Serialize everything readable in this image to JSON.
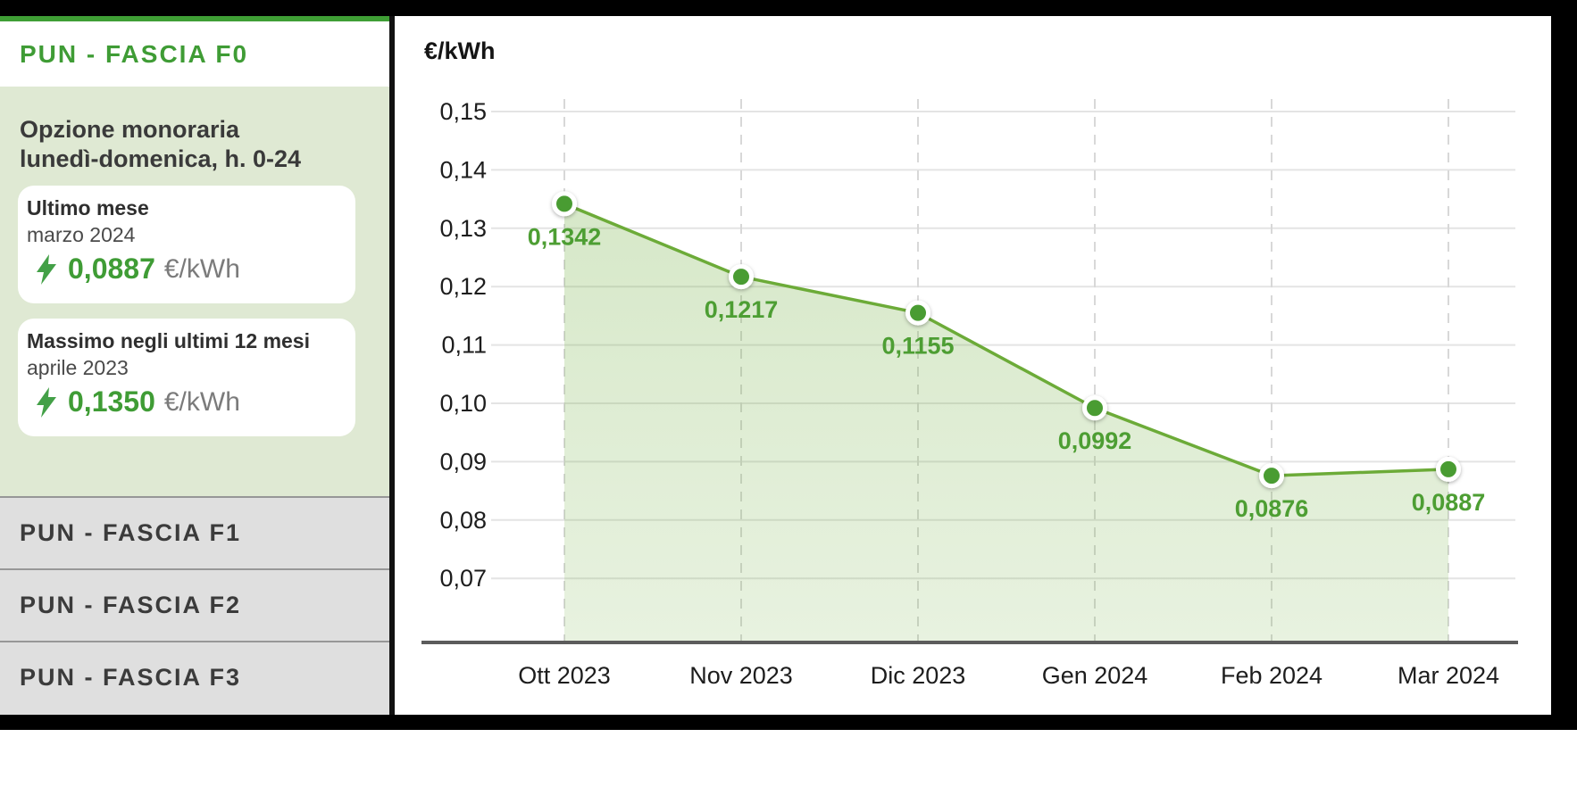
{
  "sidebar": {
    "active_tab": "PUN - FASCIA F0",
    "option_title_line1": "Opzione monoraria",
    "option_title_line2": "lunedì-domenica, h. 0-24",
    "stat_cards": [
      {
        "title": "Ultimo mese",
        "period": "marzo 2024",
        "value": "0,0887",
        "unit": "€/kWh"
      },
      {
        "title": "Massimo negli ultimi 12 mesi",
        "period": "aprile 2023",
        "value": "0,1350",
        "unit": "€/kWh"
      }
    ],
    "tabs": [
      {
        "label": "PUN - FASCIA F1"
      },
      {
        "label": "PUN - FASCIA F2"
      },
      {
        "label": "PUN - FASCIA F3"
      }
    ]
  },
  "chart": {
    "title": "€/kWh"
  },
  "chart_data": {
    "type": "area",
    "title": "€/kWh",
    "categories": [
      "Ott 2023",
      "Nov 2023",
      "Dic 2023",
      "Gen 2024",
      "Feb 2024",
      "Mar 2024"
    ],
    "values": [
      0.1342,
      0.1217,
      0.1155,
      0.0992,
      0.0876,
      0.0887
    ],
    "point_labels": [
      "0,1342",
      "0,1217",
      "0,1155",
      "0,0992",
      "0,0876",
      "0,0887"
    ],
    "yticks": [
      {
        "label": "0,15",
        "value": 0.15
      },
      {
        "label": "0,14",
        "value": 0.14
      },
      {
        "label": "0,13",
        "value": 0.13
      },
      {
        "label": "0,12",
        "value": 0.12
      },
      {
        "label": "0,11",
        "value": 0.11
      },
      {
        "label": "0,10",
        "value": 0.1
      },
      {
        "label": "0,09",
        "value": 0.09
      },
      {
        "label": "0,08",
        "value": 0.08
      },
      {
        "label": "0,07",
        "value": 0.07
      }
    ],
    "ylim": [
      0.059,
      0.153
    ],
    "grid": true,
    "legend": false,
    "colors": {
      "accent_green": "#3f9c35",
      "line": "#6cab38",
      "marker": "#4a9c30",
      "value_label": "#4d9e33",
      "fill_green": "#6ead3c",
      "tick_text": "#1d1d1d",
      "axis": "#5c5c5c"
    }
  }
}
